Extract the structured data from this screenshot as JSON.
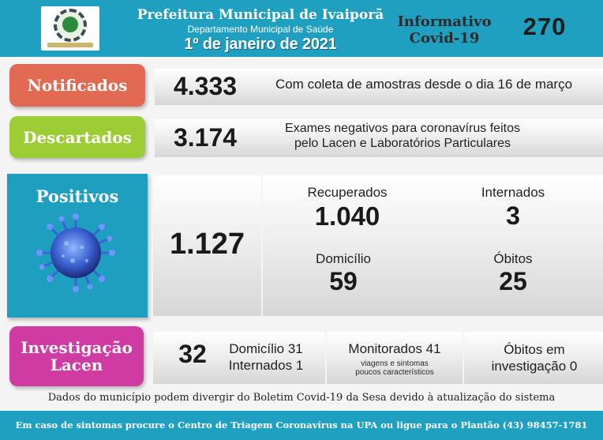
{
  "colors": {
    "header_bg": "#1fa0c0",
    "notificados": "#e26a52",
    "descartados": "#9ccd34",
    "positivos": "#1f9fc0",
    "investigacao": "#cf3ba2"
  },
  "header": {
    "logo_icon": "municipal-coat-of-arms",
    "prefeitura": "Prefeitura Municipal de Ivaiporã",
    "departamento": "Departamento Municipal de Saúde",
    "date": "1º de janeiro de 2021",
    "informativo_line1": "Informativo",
    "informativo_line2": "Covid-19",
    "edition_number": "270"
  },
  "notificados": {
    "label": "Notificados",
    "value": "4.333",
    "description": "Com coleta de amostras desde o dia 16 de março"
  },
  "descartados": {
    "label": "Descartados",
    "value": "3.174",
    "description_line1": "Exames negativos para coronavírus feitos",
    "description_line2": "pelo Lacen e Laboratórios Particulares"
  },
  "positivos": {
    "label": "Positivos",
    "icon": "coronavirus-icon",
    "value": "1.127",
    "recuperados_label": "Recuperados",
    "recuperados_value": "1.040",
    "internados_label": "Internados",
    "internados_value": "3",
    "domicilio_label": "Domicílio",
    "domicilio_value": "59",
    "obitos_label": "Óbitos",
    "obitos_value": "25"
  },
  "investigacao": {
    "label_line1": "Investigação",
    "label_line2": "Lacen",
    "value": "32",
    "domicilio": "Domicílio 31",
    "internados": "Internados 1",
    "monitorados": "Monitorados 41",
    "monitorados_sub_line1": "viagens e sintomas",
    "monitorados_sub_line2": "poucos característicos",
    "obitos_line1": "Óbitos em",
    "obitos_line2": "investigação 0"
  },
  "disclaimer": "Dados do município podem divergir do Boletim Covid-19 da Sesa devido à atualização do sistema",
  "footer": "Em caso de sintomas procure o Centro de Triagem Coronavírus na UPA ou ligue para o Plantão (43) 98457-1781"
}
